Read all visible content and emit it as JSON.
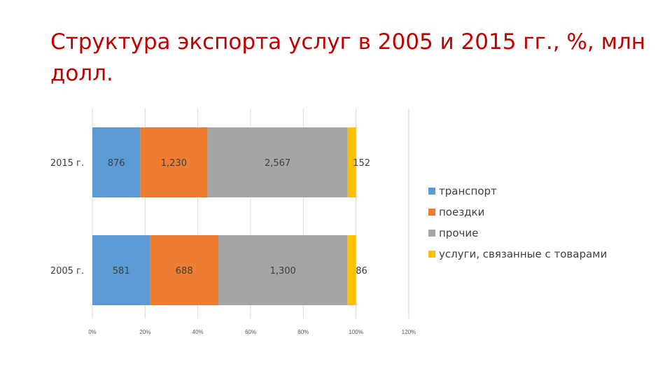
{
  "slide": {
    "title": "Структура экспорта услуг в  2005 и 2015  гг., %, млн долл."
  },
  "chart_data": {
    "type": "bar",
    "orientation": "horizontal",
    "stacked": "percent",
    "categories": [
      "2015 г.",
      "2005 г."
    ],
    "series": [
      {
        "name": "транспорт",
        "color": "#5b9bd5",
        "values": [
          876,
          581
        ],
        "labels": [
          "876",
          "581"
        ]
      },
      {
        "name": "поездки",
        "color": "#ed7d31",
        "values": [
          1230,
          688
        ],
        "labels": [
          "1,230",
          "688"
        ]
      },
      {
        "name": "прочие",
        "color": "#a5a5a5",
        "values": [
          2567,
          1300
        ],
        "labels": [
          "2,567",
          "1,300"
        ]
      },
      {
        "name": "услуги, связанные с товарами",
        "color": "#ffc000",
        "values": [
          152,
          86
        ],
        "labels": [
          "152",
          "86"
        ]
      }
    ],
    "xlim": [
      0,
      120
    ],
    "xticks": [
      "0%",
      "20%",
      "40%",
      "60%",
      "80%",
      "100%",
      "120%"
    ],
    "grid": "vertical",
    "legend_position": "right"
  }
}
